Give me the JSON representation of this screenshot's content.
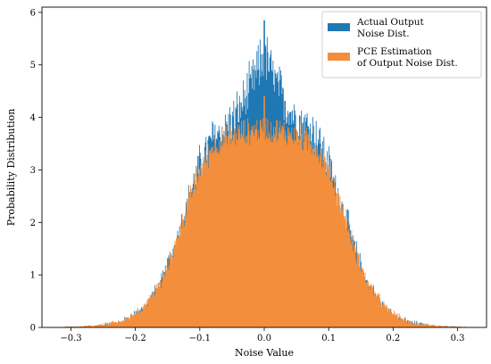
{
  "chart_data": {
    "type": "bar",
    "title": "",
    "xlabel": "Noise Value",
    "ylabel": "Probability Distribution",
    "xlim": [
      -0.345,
      0.345
    ],
    "ylim": [
      0,
      6.1
    ],
    "xticks": [
      -0.3,
      -0.2,
      -0.1,
      0.0,
      0.1,
      0.2,
      0.3
    ],
    "xtick_labels": [
      "−0.3",
      "−0.2",
      "−0.1",
      "0.0",
      "0.1",
      "0.2",
      "0.3"
    ],
    "yticks": [
      0,
      1,
      2,
      3,
      4,
      5,
      6
    ],
    "ytick_labels": [
      "0",
      "1",
      "2",
      "3",
      "4",
      "5",
      "6"
    ],
    "grid": false,
    "legend_position": "top-right",
    "bin_width": 0.001,
    "series": [
      {
        "name_lines": [
          "Actual Output",
          "Noise Dist."
        ],
        "color": "#1f77b4",
        "profile": [
          {
            "x": -0.32,
            "y": 0.0
          },
          {
            "x": -0.26,
            "y": 0.02
          },
          {
            "x": -0.22,
            "y": 0.1
          },
          {
            "x": -0.19,
            "y": 0.3
          },
          {
            "x": -0.16,
            "y": 0.8
          },
          {
            "x": -0.14,
            "y": 1.5
          },
          {
            "x": -0.12,
            "y": 2.3
          },
          {
            "x": -0.1,
            "y": 3.1
          },
          {
            "x": -0.08,
            "y": 3.6
          },
          {
            "x": -0.06,
            "y": 3.8
          },
          {
            "x": -0.04,
            "y": 4.1
          },
          {
            "x": -0.02,
            "y": 4.6
          },
          {
            "x": 0.0,
            "y": 5.2
          },
          {
            "x": 0.02,
            "y": 4.6
          },
          {
            "x": 0.04,
            "y": 4.1
          },
          {
            "x": 0.06,
            "y": 3.9
          },
          {
            "x": 0.08,
            "y": 3.7
          },
          {
            "x": 0.1,
            "y": 3.1
          },
          {
            "x": 0.12,
            "y": 2.3
          },
          {
            "x": 0.14,
            "y": 1.5
          },
          {
            "x": 0.16,
            "y": 0.8
          },
          {
            "x": 0.19,
            "y": 0.3
          },
          {
            "x": 0.22,
            "y": 0.1
          },
          {
            "x": 0.26,
            "y": 0.02
          },
          {
            "x": 0.32,
            "y": 0.0
          }
        ],
        "peak": {
          "x": 0.0,
          "y": 5.85
        }
      },
      {
        "name_lines": [
          "PCE Estimation",
          "of Output Noise Dist."
        ],
        "color": "#f28e3c",
        "profile": [
          {
            "x": -0.32,
            "y": 0.0
          },
          {
            "x": -0.26,
            "y": 0.03
          },
          {
            "x": -0.22,
            "y": 0.12
          },
          {
            "x": -0.19,
            "y": 0.35
          },
          {
            "x": -0.16,
            "y": 0.85
          },
          {
            "x": -0.14,
            "y": 1.5
          },
          {
            "x": -0.12,
            "y": 2.3
          },
          {
            "x": -0.1,
            "y": 3.0
          },
          {
            "x": -0.08,
            "y": 3.45
          },
          {
            "x": -0.06,
            "y": 3.6
          },
          {
            "x": -0.04,
            "y": 3.7
          },
          {
            "x": -0.02,
            "y": 3.75
          },
          {
            "x": 0.0,
            "y": 3.8
          },
          {
            "x": 0.02,
            "y": 3.75
          },
          {
            "x": 0.04,
            "y": 3.7
          },
          {
            "x": 0.06,
            "y": 3.6
          },
          {
            "x": 0.08,
            "y": 3.45
          },
          {
            "x": 0.1,
            "y": 3.0
          },
          {
            "x": 0.12,
            "y": 2.3
          },
          {
            "x": 0.14,
            "y": 1.5
          },
          {
            "x": 0.16,
            "y": 0.85
          },
          {
            "x": 0.19,
            "y": 0.35
          },
          {
            "x": 0.22,
            "y": 0.12
          },
          {
            "x": 0.26,
            "y": 0.03
          },
          {
            "x": 0.32,
            "y": 0.0
          }
        ],
        "peak": {
          "x": 0.0,
          "y": 4.4
        }
      }
    ]
  }
}
